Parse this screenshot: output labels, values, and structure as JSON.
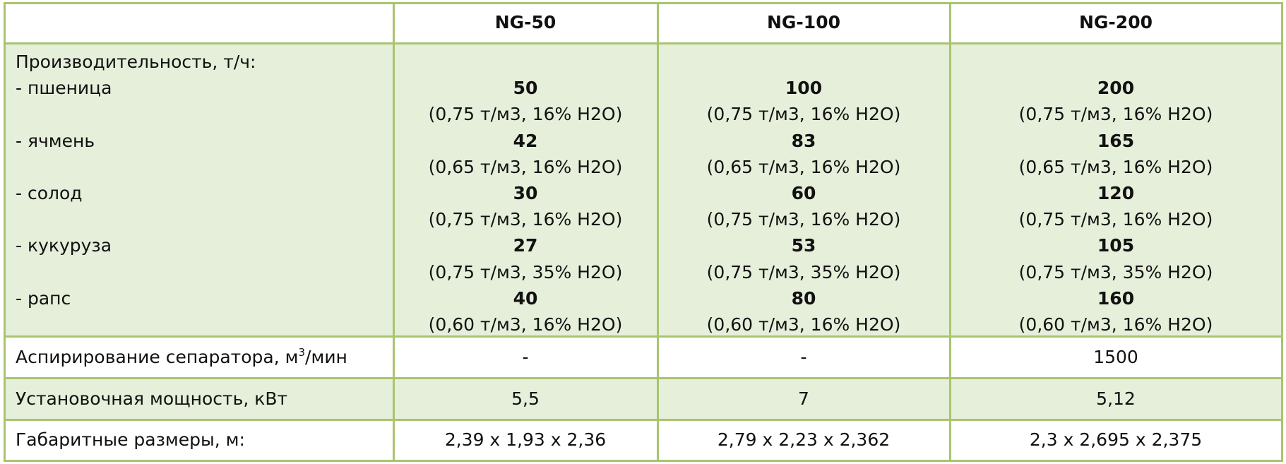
{
  "header": {
    "columns": [
      "NG-50",
      "NG-100",
      "NG-200"
    ]
  },
  "production": {
    "label": "Производительность, т/ч:",
    "items": [
      {
        "name": "- пшеница",
        "cells": [
          {
            "value": "50",
            "note": "(0,75 т/м3, 16% H2O)"
          },
          {
            "value": "100",
            "note": "(0,75 т/м3, 16% H2O)"
          },
          {
            "value": "200",
            "note": "(0,75 т/м3, 16% H2O)"
          }
        ]
      },
      {
        "name": "- ячмень",
        "cells": [
          {
            "value": "42",
            "note": "(0,65 т/м3, 16% H2O)"
          },
          {
            "value": "83",
            "note": "(0,65 т/м3, 16% H2O)"
          },
          {
            "value": "165",
            "note": "(0,65 т/м3, 16% H2O)"
          }
        ]
      },
      {
        "name": "- солод",
        "cells": [
          {
            "value": "30",
            "note": "(0,75 т/м3, 16% H2O)"
          },
          {
            "value": "60",
            "note": "(0,75 т/м3, 16% H2O)"
          },
          {
            "value": "120",
            "note": "(0,75 т/м3, 16% H2O)"
          }
        ]
      },
      {
        "name": "- кукуруза",
        "cells": [
          {
            "value": "27",
            "note": "(0,75 т/м3, 35% H2O)"
          },
          {
            "value": "53",
            "note": "(0,75 т/м3, 35% H2O)"
          },
          {
            "value": "105",
            "note": "(0,75 т/м3, 35% H2O)"
          }
        ]
      },
      {
        "name": "- рапс",
        "cells": [
          {
            "value": "40",
            "note": "(0,60 т/м3, 16% H2O)"
          },
          {
            "value": "80",
            "note": "(0,60 т/м3, 16% H2O)"
          },
          {
            "value": "160",
            "note": "(0,60 т/м3, 16% H2O)"
          }
        ]
      }
    ]
  },
  "rows": [
    {
      "label": [
        "Аспирирование сепаратора, м",
        "3",
        "/мин"
      ],
      "cells": [
        "-",
        "-",
        "1500"
      ]
    },
    {
      "label": [
        "Установочная мощность, кВт"
      ],
      "cells": [
        "5,5",
        "7",
        "5,12"
      ]
    },
    {
      "label": [
        "Габаритные размеры, м:"
      ],
      "cells": [
        "2,39 x 1,93 x 2,36",
        "2,79 x 2,23 x 2,362",
        "2,3 x 2,695 x 2,375"
      ]
    }
  ]
}
